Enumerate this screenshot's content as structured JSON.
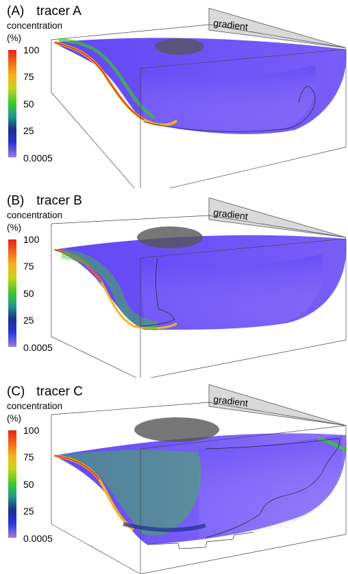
{
  "panels": [
    {
      "label": "(A)",
      "title": "tracer A",
      "colorbar_label": "concentration",
      "unit": "(%)",
      "ticks": [
        "100",
        "75",
        "50",
        "25",
        "0.0005"
      ],
      "gradient_label": "gradient"
    },
    {
      "label": "(B)",
      "title": "tracer B",
      "colorbar_label": "concentration",
      "unit": "(%)",
      "ticks": [
        "100",
        "75",
        "50",
        "25",
        "0.0005"
      ],
      "gradient_label": "gradient"
    },
    {
      "label": "(C)",
      "title": "tracer C",
      "colorbar_label": "concentration",
      "unit": "(%)",
      "ticks": [
        "100",
        "75",
        "50",
        "25",
        "0.0005"
      ],
      "gradient_label": "gradient"
    }
  ],
  "colors": {
    "plume_blue": "#5a3cf5",
    "plume_light": "#b9a8ff",
    "high": "#e8201a",
    "mid": "#37c82e",
    "low": "#2833d8",
    "min": "#9b7de6",
    "gradient_arrow": "#d9d9d9",
    "source_mound": "#555555"
  }
}
